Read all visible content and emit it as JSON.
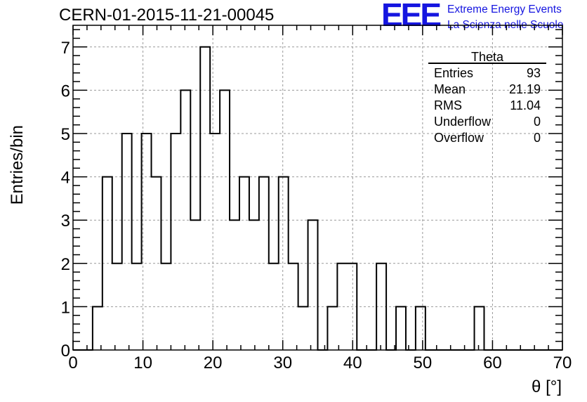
{
  "header": {
    "title": "CERN-01-2015-11-21-00045",
    "logo_text": "EEE",
    "logo_line1": "Extreme Energy Events",
    "logo_line2": "La Scienza nelle Scuole",
    "logo_color": "#1515e0"
  },
  "stats_box": {
    "name": "Theta",
    "rows": [
      {
        "label": "Entries",
        "value": "93"
      },
      {
        "label": "Mean",
        "value": "21.19"
      },
      {
        "label": "RMS",
        "value": "11.04"
      },
      {
        "label": "Underflow",
        "value": "0"
      },
      {
        "label": "Overflow",
        "value": "0"
      }
    ]
  },
  "chart_data": {
    "type": "bar",
    "histogram": true,
    "bin_width": 1.4,
    "bin_edges_start": 0,
    "values": [
      0,
      0,
      1,
      4,
      2,
      5,
      2,
      5,
      4,
      2,
      5,
      6,
      3,
      7,
      5,
      6,
      3,
      4,
      3,
      4,
      2,
      4,
      2,
      1,
      3,
      0,
      1,
      2,
      2,
      0,
      0,
      2,
      0,
      1,
      0,
      1,
      0,
      0,
      0,
      0,
      0,
      1,
      0,
      0,
      0,
      0,
      0,
      0,
      0,
      0
    ],
    "xlabel": "θ [°]",
    "ylabel": "Entries/bin",
    "xlim": [
      0,
      70
    ],
    "ylim": [
      0,
      7.5
    ],
    "xticks": [
      0,
      10,
      20,
      30,
      40,
      50,
      60,
      70
    ],
    "yticks": [
      0,
      1,
      2,
      3,
      4,
      5,
      6,
      7
    ],
    "grid": true,
    "legend": "top-right"
  }
}
